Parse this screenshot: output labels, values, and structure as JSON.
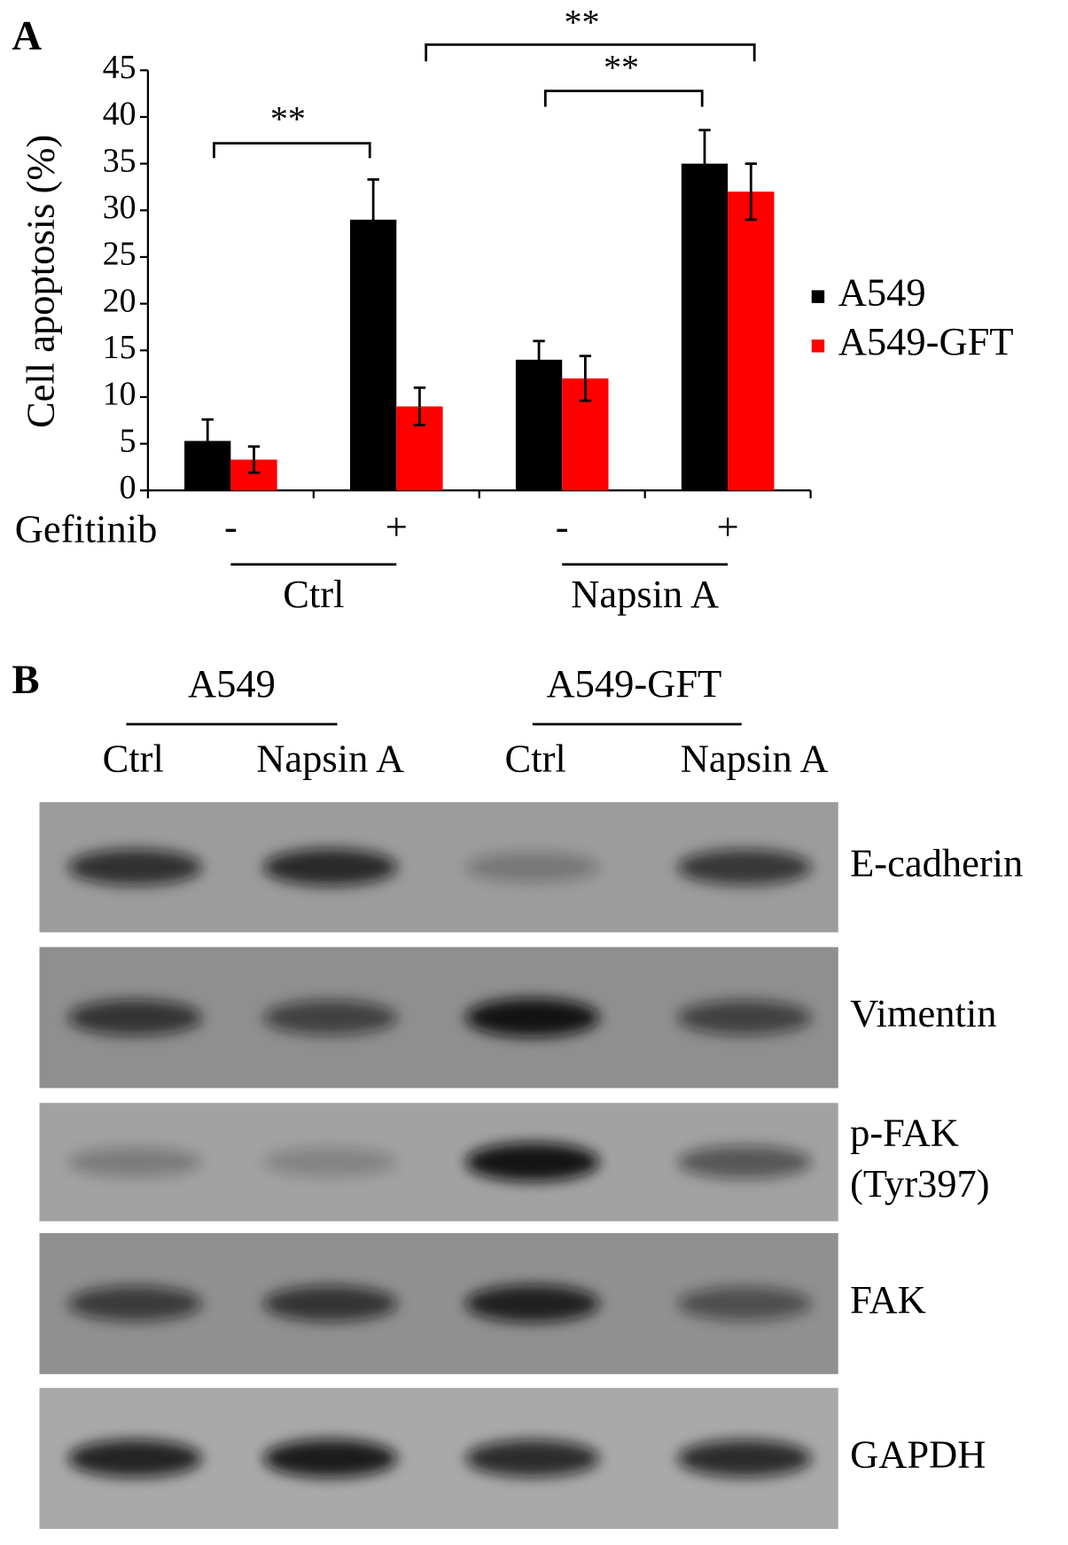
{
  "chart_data": {
    "type": "bar",
    "panel_label": "A",
    "y_label": "Cell apoptosis (%)",
    "row_label": "Gefitinib",
    "categories": [
      "-",
      "+",
      "-",
      "+"
    ],
    "groups": [
      "Ctrl",
      "Napsin A"
    ],
    "series": [
      {
        "name": "A549",
        "color": "#000000",
        "values": [
          5.3,
          29,
          14,
          35
        ],
        "errors": [
          2.3,
          4.3,
          2,
          3.6
        ]
      },
      {
        "name": "A549-GFT",
        "color": "#ff0000",
        "values": [
          3.3,
          9,
          12,
          32
        ],
        "errors": [
          1.4,
          2,
          2.4,
          3
        ]
      }
    ],
    "ylim": [
      0,
      45
    ],
    "yticks": [
      0,
      5,
      10,
      15,
      20,
      25,
      30,
      35,
      40,
      45
    ],
    "annotations": [
      "**",
      "**",
      "**"
    ],
    "legend": "right"
  },
  "western_blot": {
    "panel_label": "B",
    "groups": [
      "A549",
      "A549-GFT"
    ],
    "lanes": [
      "Ctrl",
      "Napsin A",
      "Ctrl",
      "Napsin A"
    ],
    "blots": [
      [
        "E-cadherin"
      ],
      [
        "Vimentin"
      ],
      [
        "p-FAK",
        "(Tyr397)"
      ],
      [
        "FAK"
      ],
      [
        "GAPDH"
      ]
    ]
  }
}
